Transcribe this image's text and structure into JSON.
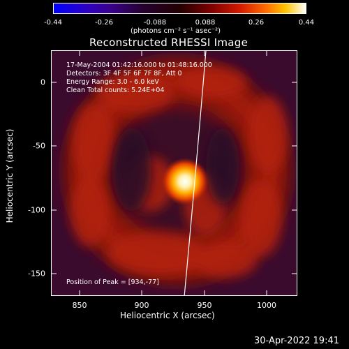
{
  "colorbar": {
    "ticks": [
      "-0.44",
      "-0.26",
      "-0.088",
      "0.088",
      "0.26",
      "0.44"
    ],
    "units": "(photons cm⁻² s⁻¹ asec⁻²)"
  },
  "title": "Reconstructed RHESSI Image",
  "info": {
    "time": "17-May-2004 01:42:16.000 to 01:48:16.000",
    "detectors": "Detectors: 3F 4F 5F 6F 7F 8F, Att 0",
    "energy": "Energy Range: 3.0 - 6.0 keV",
    "clean": "Clean     Total counts: 5.24E+04",
    "peak": "Position of Peak = [934,-77]"
  },
  "axes": {
    "xlabel": "Heliocentric X (arcsec)",
    "ylabel": "Heliocentric Y (arcsec)",
    "xticks": [
      "850",
      "900",
      "950",
      "1000"
    ],
    "yticks": [
      "0",
      "-50",
      "-100",
      "-150"
    ]
  },
  "timestamp": "30-Apr-2022 19:41"
}
